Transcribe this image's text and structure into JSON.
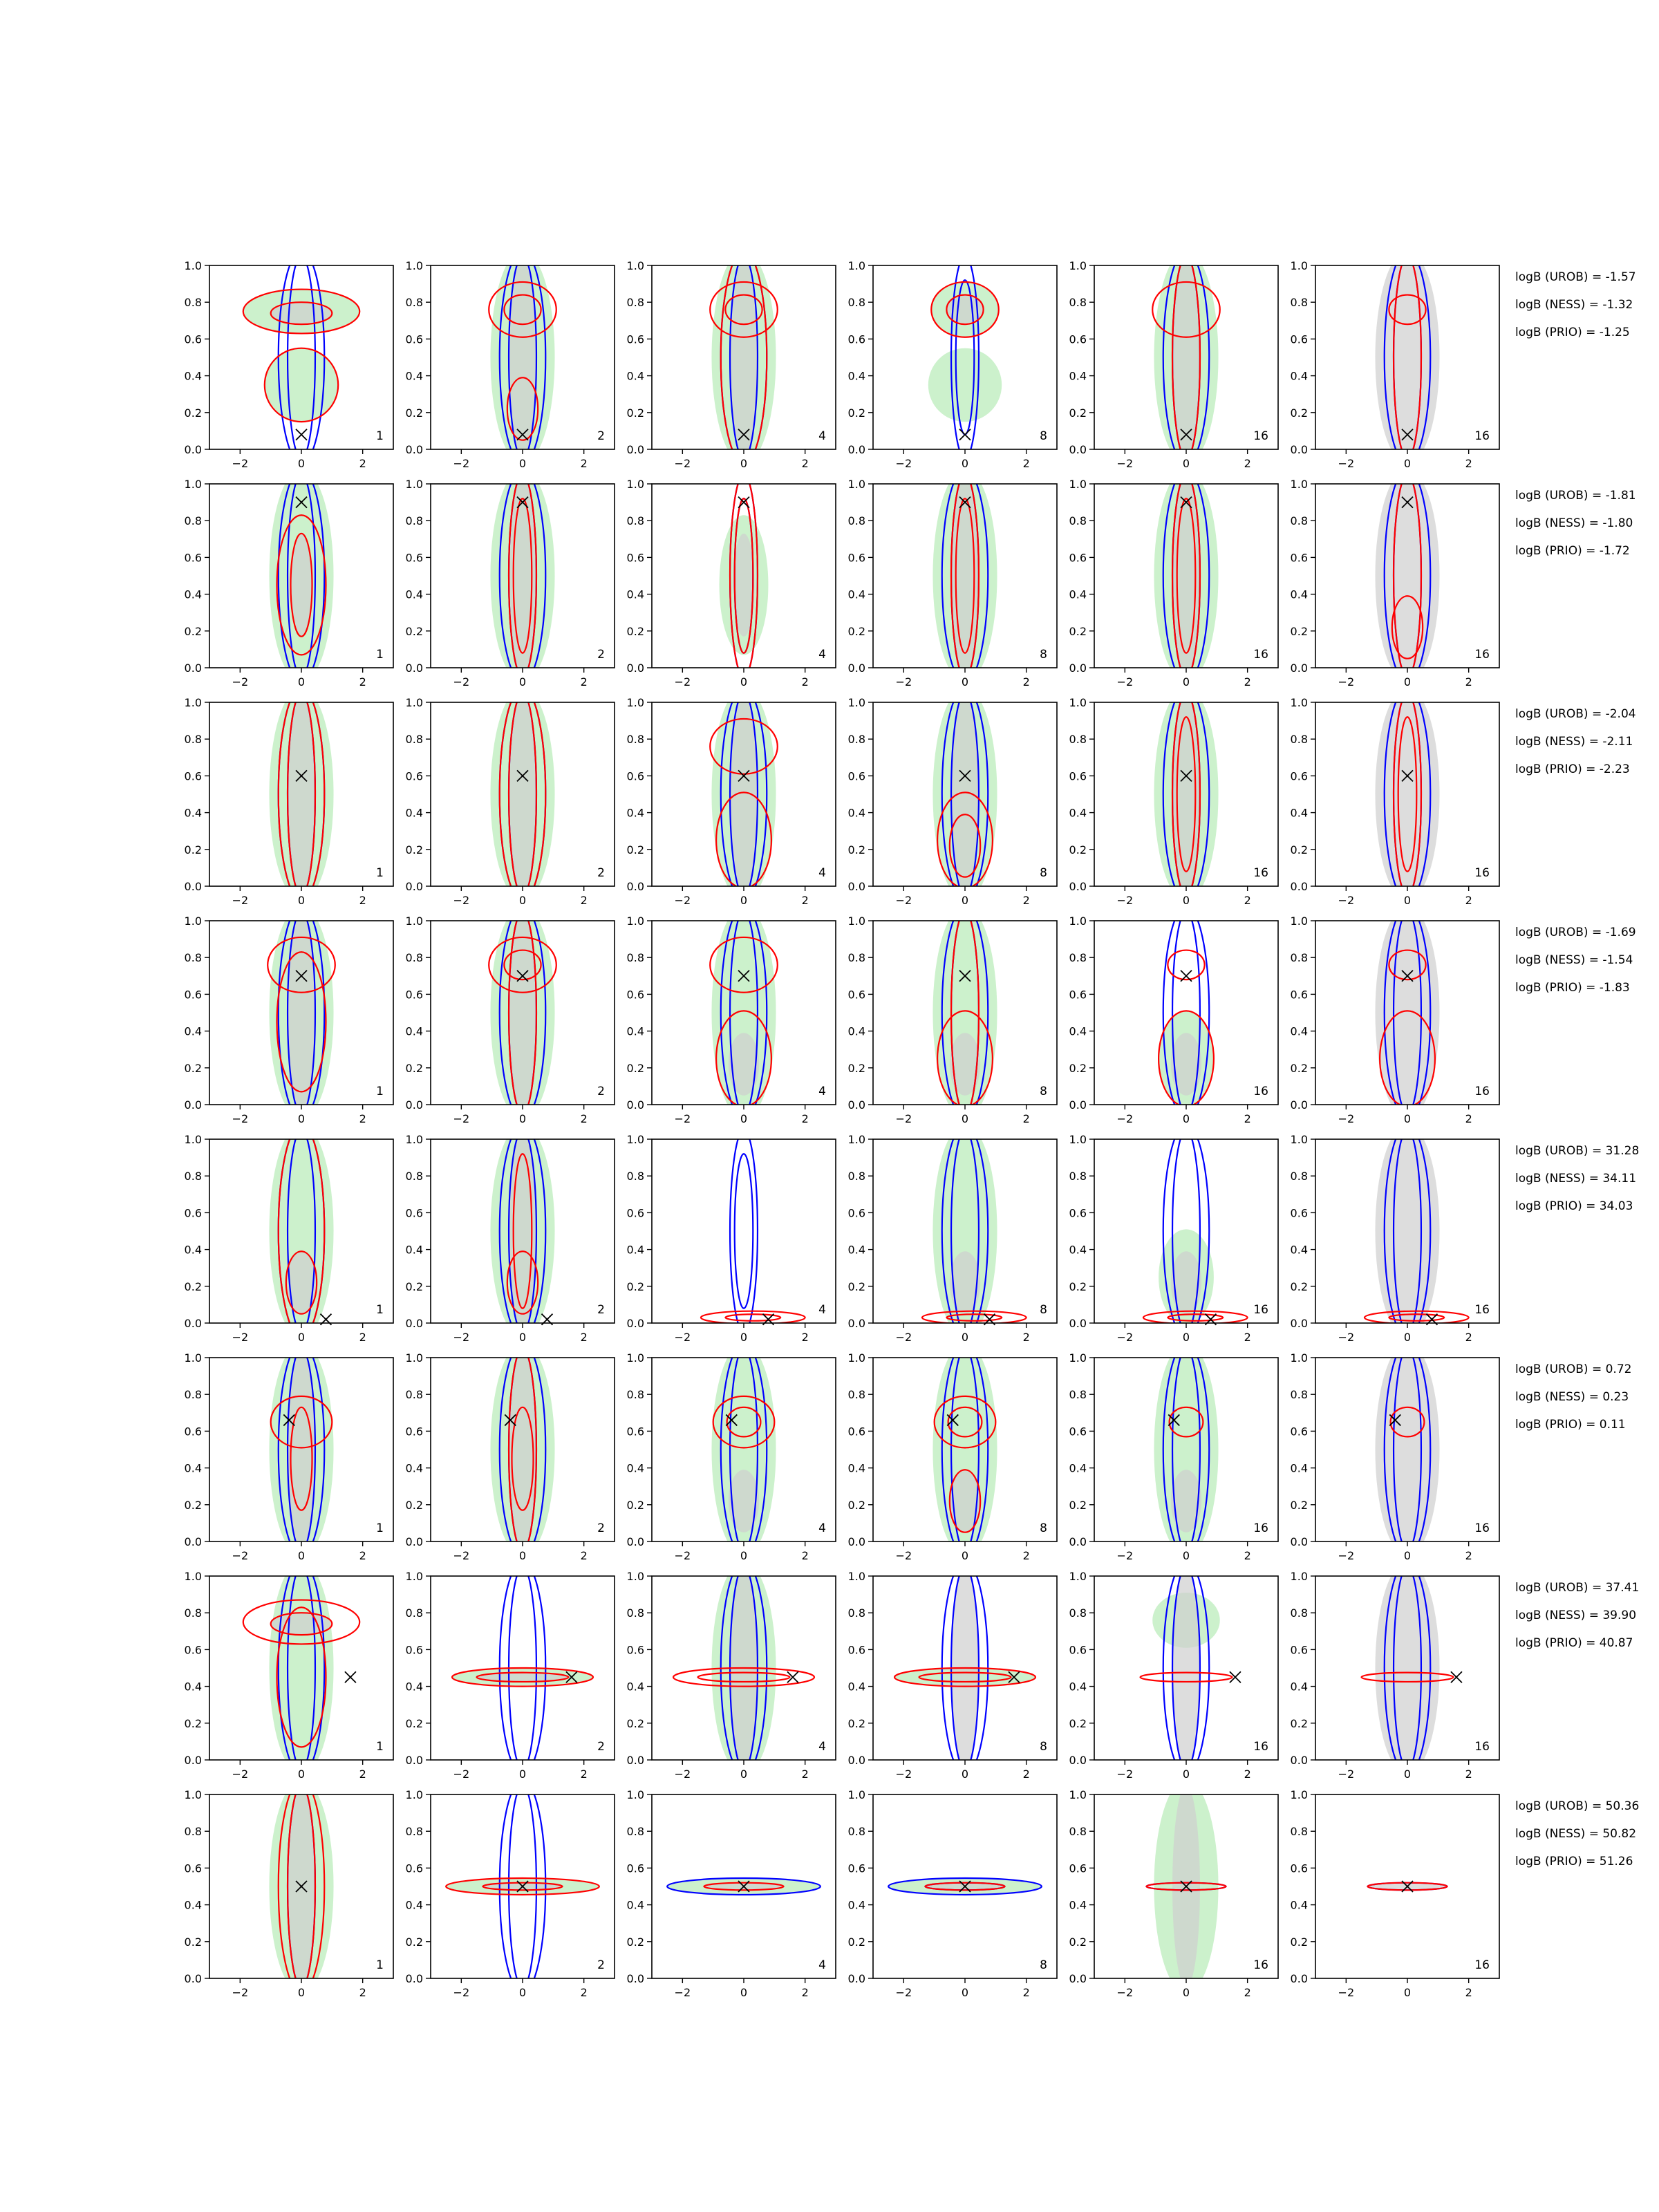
{
  "chart_data": {
    "type": "contour-grid",
    "title": "",
    "xlim": [
      -3,
      3
    ],
    "ylim": [
      0,
      1
    ],
    "xticks": [
      "−2",
      "0",
      "2"
    ],
    "yticks": [
      "0.0",
      "0.2",
      "0.4",
      "0.6",
      "0.8",
      "1.0"
    ],
    "grid": false,
    "colors": {
      "green_fill": "#c9f0c9",
      "grey_fill": "#cfcfcf",
      "blue_contour": "#0000ff",
      "red_contour": "#ff0000",
      "marker": "#000000"
    },
    "columns": [
      {
        "label": "1"
      },
      {
        "label": "2"
      },
      {
        "label": "4"
      },
      {
        "label": "8"
      },
      {
        "label": "16"
      },
      {
        "label": "16"
      }
    ],
    "rows": [
      {
        "truth": [
          0.0,
          0.08
        ],
        "logB": [
          "logB (UROB) = -1.57",
          "logB (NESS) = -1.32",
          "logB (PRIO) = -1.25"
        ]
      },
      {
        "truth": [
          0.0,
          0.9
        ],
        "logB": [
          "logB (UROB) = -1.81",
          "logB (NESS) = -1.80",
          "logB (PRIO) = -1.72"
        ]
      },
      {
        "truth": [
          0.0,
          0.6
        ],
        "logB": [
          "logB (UROB) = -2.04",
          "logB (NESS) = -2.11",
          "logB (PRIO) = -2.23"
        ]
      },
      {
        "truth": [
          0.0,
          0.7
        ],
        "logB": [
          "logB (UROB) = -1.69",
          "logB (NESS) = -1.54",
          "logB (PRIO) = -1.83"
        ]
      },
      {
        "truth": [
          0.8,
          0.02
        ],
        "logB": [
          "logB (UROB) = 31.28",
          "logB (NESS) = 34.11",
          "logB (PRIO) = 34.03"
        ]
      },
      {
        "truth": [
          -0.4,
          0.66
        ],
        "logB": [
          "logB (UROB) = 0.72",
          "logB (NESS) = 0.23",
          "logB (PRIO) = 0.11"
        ]
      },
      {
        "truth": [
          1.6,
          0.45
        ],
        "logB": [
          "logB (UROB) = 37.41",
          "logB (NESS) = 39.90",
          "logB (PRIO) = 40.87"
        ]
      },
      {
        "truth": [
          0.0,
          0.5
        ],
        "logB": [
          "logB (UROB) = 50.36",
          "logB (NESS) = 50.82",
          "logB (PRIO) = 51.26"
        ]
      }
    ]
  }
}
